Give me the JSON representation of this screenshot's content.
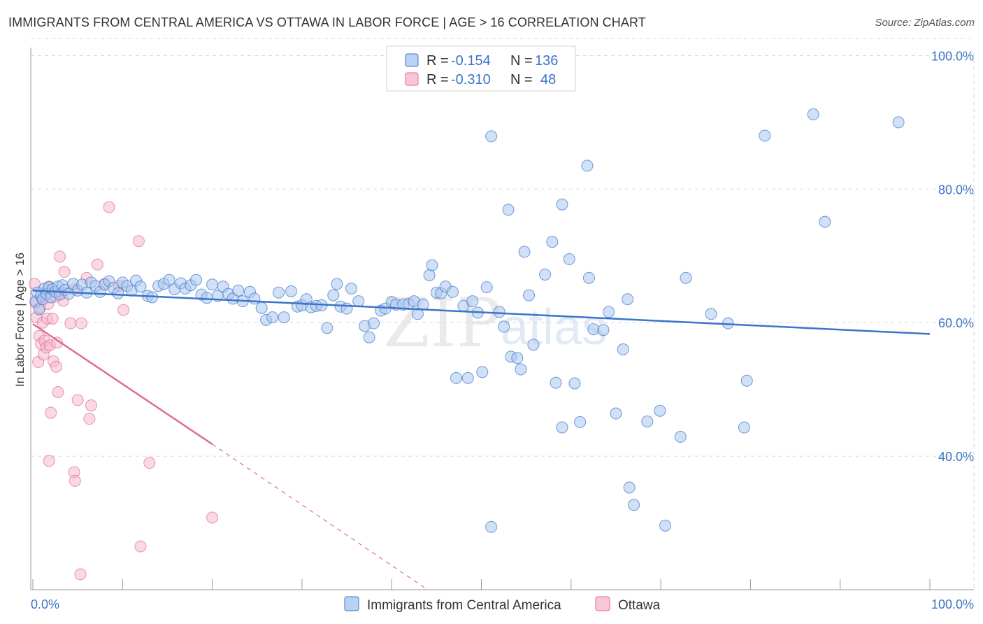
{
  "header": {
    "title": "IMMIGRANTS FROM CENTRAL AMERICA VS OTTAWA IN LABOR FORCE | AGE > 16 CORRELATION CHART",
    "source": "Source: ZipAtlas.com"
  },
  "watermark": {
    "zip": "ZIP",
    "atlas": "atlas"
  },
  "colors": {
    "blue": "#3b74c8",
    "blue_fill": "#a9c7ef",
    "pink": "#e06a98",
    "pink_fill": "#f6b8cd",
    "grid": "#d8d8d8"
  },
  "legend_top": {
    "rows": [
      {
        "r_label": "R =",
        "r_value": "-0.154",
        "n_label": "N =",
        "n_value": "136"
      },
      {
        "r_label": "R =",
        "r_value": "-0.310",
        "n_label": "N =",
        "n_value": "48"
      }
    ]
  },
  "legend_bottom": {
    "items": [
      {
        "label": "Immigrants from Central America"
      },
      {
        "label": "Ottawa"
      }
    ]
  },
  "chart_data": {
    "type": "scatter",
    "title": "IMMIGRANTS FROM CENTRAL AMERICA VS OTTAWA IN LABOR FORCE | AGE > 16 CORRELATION CHART",
    "xlabel": "",
    "ylabel": "In Labor Force | Age > 16",
    "xlim": [
      0,
      100
    ],
    "ylim": [
      20,
      104
    ],
    "x_tick_labels": [
      "0.0%",
      "100.0%"
    ],
    "y_ticks": [
      40,
      60,
      80,
      100
    ],
    "y_tick_labels": [
      "40.0%",
      "60.0%",
      "80.0%",
      "100.0%"
    ],
    "grid": true,
    "legend_position": "top-center",
    "series": [
      {
        "name": "Immigrants from Central America",
        "color": "#3b74c8",
        "trend": {
          "x": [
            0,
            100
          ],
          "y": [
            64.8,
            58.3
          ],
          "dashed_from": null
        },
        "points": [
          [
            0.3,
            63.2
          ],
          [
            0.5,
            64.5
          ],
          [
            0.7,
            62.0
          ],
          [
            0.9,
            64.0
          ],
          [
            1.1,
            63.5
          ],
          [
            1.3,
            65.1
          ],
          [
            1.5,
            64.3
          ],
          [
            1.8,
            65.3
          ],
          [
            2.0,
            63.8
          ],
          [
            2.2,
            65.0
          ],
          [
            2.5,
            64.6
          ],
          [
            2.8,
            65.4
          ],
          [
            3.0,
            64.2
          ],
          [
            3.3,
            65.6
          ],
          [
            3.6,
            64.9
          ],
          [
            4.0,
            64.3
          ],
          [
            4.5,
            65.8
          ],
          [
            5.0,
            64.8
          ],
          [
            5.5,
            65.7
          ],
          [
            6.0,
            64.5
          ],
          [
            6.5,
            66.0
          ],
          [
            7.0,
            65.5
          ],
          [
            7.5,
            64.6
          ],
          [
            8.0,
            65.7
          ],
          [
            8.5,
            66.2
          ],
          [
            9.0,
            65.2
          ],
          [
            9.5,
            64.4
          ],
          [
            10.0,
            66.0
          ],
          [
            10.5,
            65.5
          ],
          [
            11.0,
            64.8
          ],
          [
            11.5,
            66.3
          ],
          [
            12.0,
            65.4
          ],
          [
            12.8,
            64.0
          ],
          [
            13.3,
            63.8
          ],
          [
            14.0,
            65.5
          ],
          [
            14.6,
            65.8
          ],
          [
            15.2,
            66.4
          ],
          [
            15.8,
            65.0
          ],
          [
            16.5,
            65.9
          ],
          [
            17.0,
            65.1
          ],
          [
            17.6,
            65.6
          ],
          [
            18.2,
            66.4
          ],
          [
            18.8,
            64.2
          ],
          [
            19.4,
            63.7
          ],
          [
            20.0,
            65.7
          ],
          [
            20.6,
            64.0
          ],
          [
            21.2,
            65.4
          ],
          [
            21.8,
            64.3
          ],
          [
            22.3,
            63.6
          ],
          [
            22.9,
            64.8
          ],
          [
            23.4,
            63.2
          ],
          [
            24.2,
            64.6
          ],
          [
            24.7,
            63.6
          ],
          [
            25.5,
            62.2
          ],
          [
            26.0,
            60.4
          ],
          [
            26.7,
            60.8
          ],
          [
            27.4,
            64.5
          ],
          [
            28.0,
            60.8
          ],
          [
            28.8,
            64.7
          ],
          [
            29.5,
            62.4
          ],
          [
            30.0,
            62.6
          ],
          [
            30.5,
            63.5
          ],
          [
            31.0,
            62.3
          ],
          [
            31.6,
            62.5
          ],
          [
            32.2,
            62.6
          ],
          [
            32.8,
            59.2
          ],
          [
            33.5,
            64.1
          ],
          [
            33.9,
            65.8
          ],
          [
            34.3,
            62.4
          ],
          [
            35.0,
            62.1
          ],
          [
            35.5,
            65.1
          ],
          [
            36.3,
            63.2
          ],
          [
            37.0,
            59.5
          ],
          [
            37.5,
            57.8
          ],
          [
            38.0,
            59.9
          ],
          [
            38.8,
            61.8
          ],
          [
            39.3,
            62.1
          ],
          [
            40.0,
            63.1
          ],
          [
            40.5,
            62.7
          ],
          [
            41.3,
            62.7
          ],
          [
            41.9,
            62.8
          ],
          [
            42.5,
            63.2
          ],
          [
            42.9,
            61.3
          ],
          [
            43.5,
            62.7
          ],
          [
            44.2,
            67.1
          ],
          [
            44.5,
            68.6
          ],
          [
            45.0,
            64.5
          ],
          [
            45.5,
            64.4
          ],
          [
            46.0,
            65.4
          ],
          [
            46.8,
            64.6
          ],
          [
            47.2,
            51.7
          ],
          [
            48.0,
            62.5
          ],
          [
            48.5,
            51.7
          ],
          [
            49.0,
            63.2
          ],
          [
            49.6,
            61.5
          ],
          [
            50.1,
            52.6
          ],
          [
            50.6,
            65.3
          ],
          [
            51.1,
            29.4
          ],
          [
            51.1,
            87.9
          ],
          [
            52.0,
            61.6
          ],
          [
            52.5,
            59.4
          ],
          [
            53.0,
            76.9
          ],
          [
            53.3,
            54.9
          ],
          [
            54.0,
            54.7
          ],
          [
            54.4,
            53.0
          ],
          [
            54.8,
            70.6
          ],
          [
            55.3,
            64.1
          ],
          [
            55.8,
            56.7
          ],
          [
            57.1,
            67.2
          ],
          [
            57.9,
            72.1
          ],
          [
            58.3,
            51.0
          ],
          [
            59.0,
            44.3
          ],
          [
            59.0,
            77.7
          ],
          [
            59.8,
            69.5
          ],
          [
            60.4,
            50.9
          ],
          [
            61.0,
            45.1
          ],
          [
            61.8,
            83.5
          ],
          [
            62.0,
            66.7
          ],
          [
            62.5,
            59.0
          ],
          [
            63.6,
            58.9
          ],
          [
            64.2,
            61.6
          ],
          [
            65.0,
            46.4
          ],
          [
            65.8,
            56.0
          ],
          [
            66.3,
            63.5
          ],
          [
            66.5,
            35.3
          ],
          [
            67.0,
            32.7
          ],
          [
            68.5,
            45.2
          ],
          [
            69.9,
            46.8
          ],
          [
            70.5,
            29.6
          ],
          [
            72.2,
            42.9
          ],
          [
            72.8,
            66.7
          ],
          [
            75.6,
            61.3
          ],
          [
            77.5,
            59.9
          ],
          [
            79.3,
            44.3
          ],
          [
            79.6,
            51.3
          ],
          [
            81.6,
            88.0
          ],
          [
            87.0,
            91.2
          ],
          [
            88.3,
            75.1
          ],
          [
            96.5,
            90.0
          ]
        ]
      },
      {
        "name": "Ottawa",
        "color": "#e06a98",
        "trend": {
          "x": [
            0,
            20,
            44
          ],
          "y": [
            59.8,
            41.8,
            20.0
          ],
          "dashed_from": 20
        },
        "points": [
          [
            0.2,
            65.8
          ],
          [
            0.4,
            60.8
          ],
          [
            0.6,
            54.1
          ],
          [
            0.7,
            58.0
          ],
          [
            0.8,
            62.2
          ],
          [
            0.9,
            56.8
          ],
          [
            1.0,
            63.6
          ],
          [
            1.1,
            60.0
          ],
          [
            1.2,
            55.2
          ],
          [
            1.3,
            57.3
          ],
          [
            1.4,
            64.6
          ],
          [
            1.5,
            56.3
          ],
          [
            1.6,
            60.6
          ],
          [
            1.7,
            62.8
          ],
          [
            1.8,
            39.3
          ],
          [
            1.8,
            65.4
          ],
          [
            1.9,
            56.6
          ],
          [
            2.0,
            46.5
          ],
          [
            2.2,
            60.6
          ],
          [
            2.3,
            54.2
          ],
          [
            2.5,
            63.9
          ],
          [
            2.6,
            53.4
          ],
          [
            2.7,
            57.0
          ],
          [
            2.8,
            49.6
          ],
          [
            3.0,
            69.9
          ],
          [
            3.2,
            64.5
          ],
          [
            3.4,
            63.3
          ],
          [
            3.5,
            67.6
          ],
          [
            4.2,
            59.9
          ],
          [
            4.6,
            65.0
          ],
          [
            4.6,
            37.6
          ],
          [
            4.7,
            36.3
          ],
          [
            5.0,
            48.4
          ],
          [
            5.3,
            22.3
          ],
          [
            5.4,
            59.9
          ],
          [
            6.0,
            66.7
          ],
          [
            6.3,
            45.6
          ],
          [
            6.5,
            47.6
          ],
          [
            7.2,
            68.7
          ],
          [
            8.0,
            65.8
          ],
          [
            8.5,
            77.3
          ],
          [
            9.6,
            65.5
          ],
          [
            10.1,
            61.9
          ],
          [
            11.8,
            72.2
          ],
          [
            12.0,
            26.5
          ],
          [
            13.0,
            39.0
          ],
          [
            20.0,
            30.8
          ],
          [
            0.3,
            63.0
          ]
        ]
      }
    ]
  }
}
